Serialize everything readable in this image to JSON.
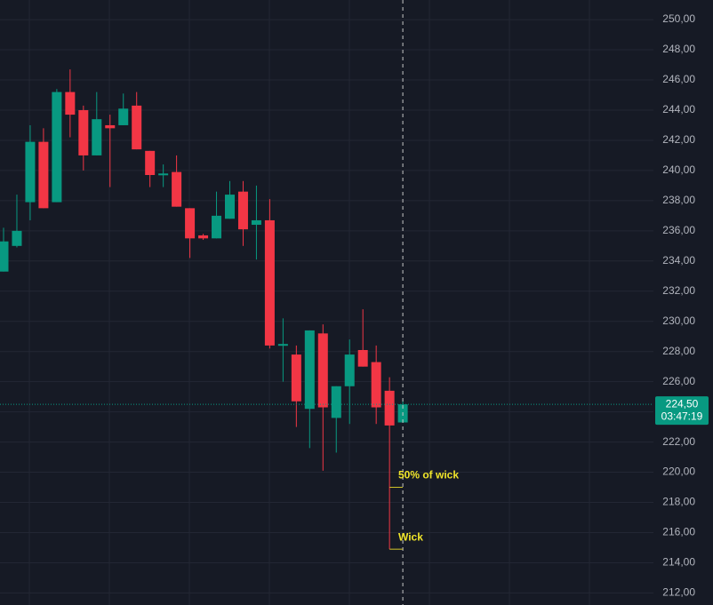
{
  "chart_data": {
    "type": "candlestick",
    "open": [
      233.3,
      235.0,
      237.9,
      241.9,
      237.9,
      245.2,
      244.0,
      241.0,
      243.0,
      243.0,
      244.3,
      241.3,
      239.7,
      239.9,
      237.5,
      235.7,
      235.5,
      236.8,
      238.6,
      236.4,
      236.7,
      228.4,
      227.8,
      224.2,
      229.2,
      223.6,
      225.7,
      228.1,
      227.3,
      225.4,
      223.3
    ],
    "high": [
      236.2,
      238.4,
      243.0,
      242.8,
      245.4,
      246.7,
      244.3,
      245.2,
      243.7,
      245.1,
      245.2,
      241.3,
      240.4,
      241.0,
      237.5,
      235.8,
      238.6,
      239.3,
      239.3,
      239.0,
      238.1,
      230.2,
      228.4,
      229.4,
      229.8,
      225.7,
      228.8,
      230.8,
      228.4,
      226.3,
      224.8
    ],
    "low": [
      233.3,
      234.9,
      236.7,
      237.5,
      237.9,
      242.2,
      240.0,
      241.0,
      238.9,
      243.0,
      241.4,
      238.9,
      238.9,
      237.6,
      234.2,
      235.4,
      235.5,
      236.8,
      235.0,
      234.1,
      228.2,
      226.0,
      223.0,
      221.6,
      220.1,
      221.3,
      223.2,
      227.0,
      223.2,
      214.9,
      223.3
    ],
    "close": [
      235.3,
      236.0,
      241.9,
      237.5,
      245.2,
      243.7,
      241.0,
      243.4,
      242.8,
      244.1,
      241.4,
      239.7,
      239.8,
      237.6,
      235.5,
      235.5,
      237.0,
      238.4,
      236.1,
      236.7,
      228.4,
      228.5,
      224.7,
      229.4,
      224.3,
      225.7,
      227.8,
      227.0,
      224.3,
      223.1,
      224.5
    ],
    "colors": {
      "up": "#089981",
      "down": "#f23645"
    },
    "ylim": [
      211.2,
      251.3
    ],
    "yticks": [
      {
        "value": 212,
        "label": "212,00"
      },
      {
        "value": 214,
        "label": "214,00"
      },
      {
        "value": 216,
        "label": "216,00"
      },
      {
        "value": 218,
        "label": "218,00"
      },
      {
        "value": 220,
        "label": "220,00"
      },
      {
        "value": 222,
        "label": "222,00"
      },
      {
        "value": 224,
        "label": "224,00"
      },
      {
        "value": 226,
        "label": "226,00"
      },
      {
        "value": 228,
        "label": "228,00"
      },
      {
        "value": 230,
        "label": "230,00"
      },
      {
        "value": 232,
        "label": "232,00"
      },
      {
        "value": 234,
        "label": "234,00"
      },
      {
        "value": 236,
        "label": "236,00"
      },
      {
        "value": 238,
        "label": "238,00"
      },
      {
        "value": 240,
        "label": "240,00"
      },
      {
        "value": 242,
        "label": "242,00"
      },
      {
        "value": 244,
        "label": "244,00"
      },
      {
        "value": 246,
        "label": "246,00"
      },
      {
        "value": 248,
        "label": "248,00"
      },
      {
        "value": 250,
        "label": "250,00"
      }
    ],
    "grid": true,
    "last_price": {
      "value": 224.5,
      "label": "224,50",
      "countdown": "03:47:19"
    },
    "annotations": [
      {
        "text": "50% of wick",
        "value": 219.0
      },
      {
        "text": "Wick",
        "value": 214.9
      }
    ]
  }
}
